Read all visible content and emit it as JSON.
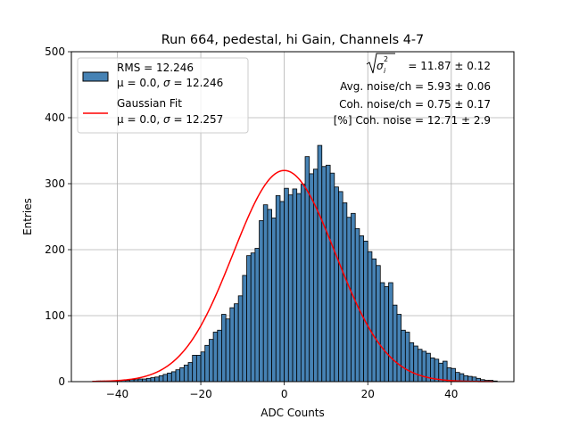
{
  "chart_data": {
    "type": "bar",
    "title": "Run 664, pedestal, hi Gain, Channels 4-7",
    "xlabel": "ADC Counts",
    "ylabel": "Entries",
    "xlim": [
      -51,
      55
    ],
    "ylim": [
      0,
      500
    ],
    "x_ticks": [
      {
        "value": -40,
        "label": "−40"
      },
      {
        "value": -20,
        "label": "−20"
      },
      {
        "value": 0,
        "label": "0"
      },
      {
        "value": 20,
        "label": "20"
      },
      {
        "value": 40,
        "label": "40"
      }
    ],
    "y_ticks": [
      {
        "value": 0,
        "label": "0"
      },
      {
        "value": 100,
        "label": "100"
      },
      {
        "value": 200,
        "label": "200"
      },
      {
        "value": 300,
        "label": "300"
      },
      {
        "value": 400,
        "label": "400"
      },
      {
        "value": 500,
        "label": "500"
      }
    ],
    "grid": true,
    "histogram": {
      "bin_start": -45,
      "bin_width": 1,
      "counts": [
        1,
        1,
        1,
        1,
        1,
        2,
        2,
        2,
        3,
        3,
        4,
        4,
        5,
        6,
        7,
        9,
        11,
        13,
        15,
        18,
        21,
        25,
        29,
        40,
        40,
        45,
        55,
        64,
        75,
        78,
        102,
        95,
        112,
        118,
        130,
        161,
        191,
        195,
        202,
        244,
        268,
        261,
        248,
        282,
        273,
        293,
        283,
        292,
        285,
        299,
        341,
        315,
        322,
        358,
        326,
        328,
        316,
        295,
        288,
        271,
        249,
        255,
        232,
        221,
        213,
        197,
        186,
        176,
        150,
        144,
        150,
        116,
        102,
        78,
        75,
        59,
        54,
        49,
        46,
        43,
        36,
        34,
        28,
        31,
        21,
        20,
        14,
        12,
        9,
        8,
        7,
        5,
        3,
        2,
        2,
        1
      ],
      "color": "#4682b4",
      "edgecolor": "#000000"
    },
    "gaussian_fit": {
      "mean": 0.0,
      "sigma": 12.257,
      "amplitude": 320,
      "x_range": [
        -46,
        50
      ],
      "color": "#ff0000"
    },
    "legend": {
      "position": "top-left",
      "entries": [
        {
          "line1": "RMS = 12.246",
          "line2_prefix": "μ = 0.0, ",
          "line2_sym": "σ",
          "line2_suffix": " = 12.246",
          "marker": "patch",
          "color": "#4682b4"
        },
        {
          "line1": "Gaussian Fit",
          "line2_prefix": "μ = 0.0, ",
          "line2_sym": "σ",
          "line2_suffix": " = 12.257",
          "marker": "line",
          "color": "#ff0000"
        }
      ]
    },
    "annotations": {
      "sqrt_var_sym": "σ",
      "sqrt_var_sub": "i",
      "sqrt_var_sup": "2",
      "sqrt_var_value": " = 11.87 ± 0.12",
      "avg_noise": "Avg. noise/ch = 5.93 ± 0.06",
      "coh_noise": "Coh. noise/ch = 0.75 ± 0.17",
      "coh_noise_pct": "[%] Coh. noise = 12.71 ± 2.9"
    }
  }
}
